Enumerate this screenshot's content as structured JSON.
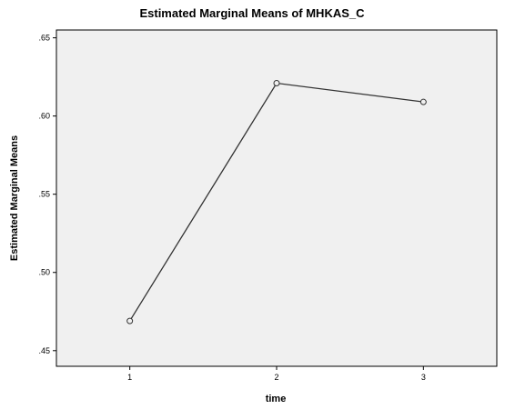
{
  "chart_data": {
    "type": "line",
    "title": "Estimated Marginal Means of MHKAS_C",
    "xlabel": "time",
    "ylabel": "Estimated Marginal Means",
    "categories": [
      "1",
      "2",
      "3"
    ],
    "values": [
      0.469,
      0.621,
      0.609
    ],
    "ylim": [
      0.44,
      0.655
    ],
    "yticks": [
      0.45,
      0.5,
      0.55,
      0.6,
      0.65
    ],
    "ytick_labels": [
      ".45",
      ".50",
      ".55",
      ".60",
      ".65"
    ],
    "grid": false,
    "colors": {
      "plot_background": "#f0f0f0",
      "line": "#333333",
      "marker": "#333333"
    }
  }
}
